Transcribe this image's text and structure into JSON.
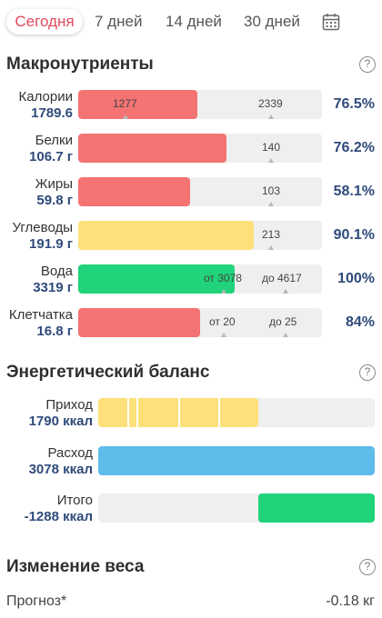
{
  "tabs": [
    "Сегодня",
    "7 дней",
    "14 дней",
    "30 дней"
  ],
  "icons": {
    "calendar": "calendar-icon",
    "help": "question-circle-icon"
  },
  "colors": {
    "active_tab": "#e34a5c",
    "red": "#f47373",
    "yellow": "#fde07a",
    "green": "#21d37a",
    "blue": "#5ebbea",
    "value_text": "#2f4a7a"
  },
  "macros": {
    "title": "Макронутриенты",
    "help": "?",
    "rows": [
      {
        "name": "Калории",
        "value": "1789.6",
        "markers": [
          "1277",
          "2339"
        ],
        "percent": "76.5%",
        "fill_fraction": 0.49,
        "color": "red"
      },
      {
        "name": "Белки",
        "value": "106.7 г",
        "markers": [
          "140"
        ],
        "percent": "76.2%",
        "fill_fraction": 0.61,
        "color": "red"
      },
      {
        "name": "Жиры",
        "value": "59.8 г",
        "markers": [
          "103"
        ],
        "percent": "58.1%",
        "fill_fraction": 0.46,
        "color": "red"
      },
      {
        "name": "Углеводы",
        "value": "191.9 г",
        "markers": [
          "213"
        ],
        "percent": "90.1%",
        "fill_fraction": 0.72,
        "color": "yellow"
      },
      {
        "name": "Вода",
        "value": "3319 г",
        "markers": [
          "от 3078",
          "до 4617"
        ],
        "percent": "100%",
        "fill_fraction": 0.64,
        "color": "green"
      },
      {
        "name": "Клетчатка",
        "value": "16.8 г",
        "markers": [
          "от 20",
          "до 25"
        ],
        "percent": "84%",
        "fill_fraction": 0.5,
        "color": "red"
      }
    ]
  },
  "energy": {
    "title": "Энергетический баланс",
    "help": "?",
    "rows": [
      {
        "name": "Приход",
        "value": "1790 ккал",
        "color": "yellow",
        "fill_fraction": 0.58
      },
      {
        "name": "Расход",
        "value": "3078 ккал",
        "color": "blue",
        "fill_fraction": 1.0
      },
      {
        "name": "Итого",
        "value": "-1288 ккал",
        "color": "green",
        "fill_fraction": 0.42
      }
    ]
  },
  "weight": {
    "title": "Изменение веса",
    "help": "?",
    "forecast_label": "Прогноз*",
    "forecast_value": "-0.18 кг"
  }
}
